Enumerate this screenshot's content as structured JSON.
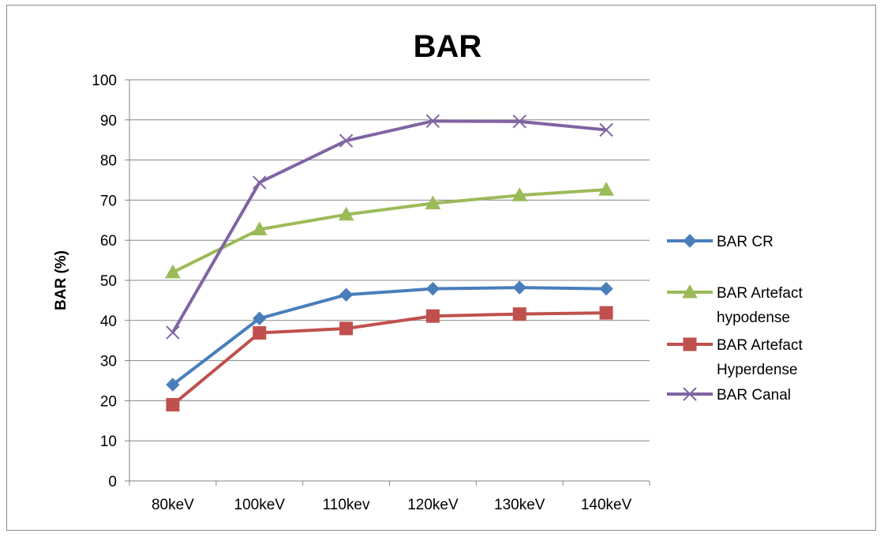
{
  "chart_data": {
    "type": "line",
    "title": "BAR",
    "xlabel": "",
    "ylabel": "BAR (%)",
    "categories": [
      "80keV",
      "100keV",
      "110kev",
      "120keV",
      "130keV",
      "140keV"
    ],
    "ylim": [
      0,
      100
    ],
    "yticks": [
      "0",
      "10",
      "20",
      "30",
      "40",
      "50",
      "60",
      "70",
      "80",
      "90",
      "100"
    ],
    "grid": true,
    "legend_position": "right",
    "series": [
      {
        "name": "BAR CR",
        "name_lines": [
          "BAR CR"
        ],
        "color": "#4a7ebb",
        "marker": "diamond",
        "values": [
          24,
          40.5,
          46.4,
          47.9,
          48.2,
          47.9
        ]
      },
      {
        "name": "BAR Artefact hypodense",
        "name_lines": [
          "BAR Artefact",
          "hypodense"
        ],
        "color": "#9bbb59",
        "marker": "triangle",
        "values": [
          52,
          62.7,
          66.4,
          69.2,
          71.2,
          72.6
        ]
      },
      {
        "name": "BAR Artefact Hyperdense",
        "name_lines": [
          "BAR Artefact",
          "Hyperdense"
        ],
        "color": "#c0504d",
        "marker": "square",
        "values": [
          19,
          36.9,
          38,
          41.1,
          41.6,
          41.9
        ]
      },
      {
        "name": "BAR Canal",
        "name_lines": [
          "BAR Canal"
        ],
        "color": "#8064a2",
        "marker": "x",
        "values": [
          37,
          74.4,
          84.8,
          89.7,
          89.6,
          87.5
        ]
      }
    ]
  }
}
